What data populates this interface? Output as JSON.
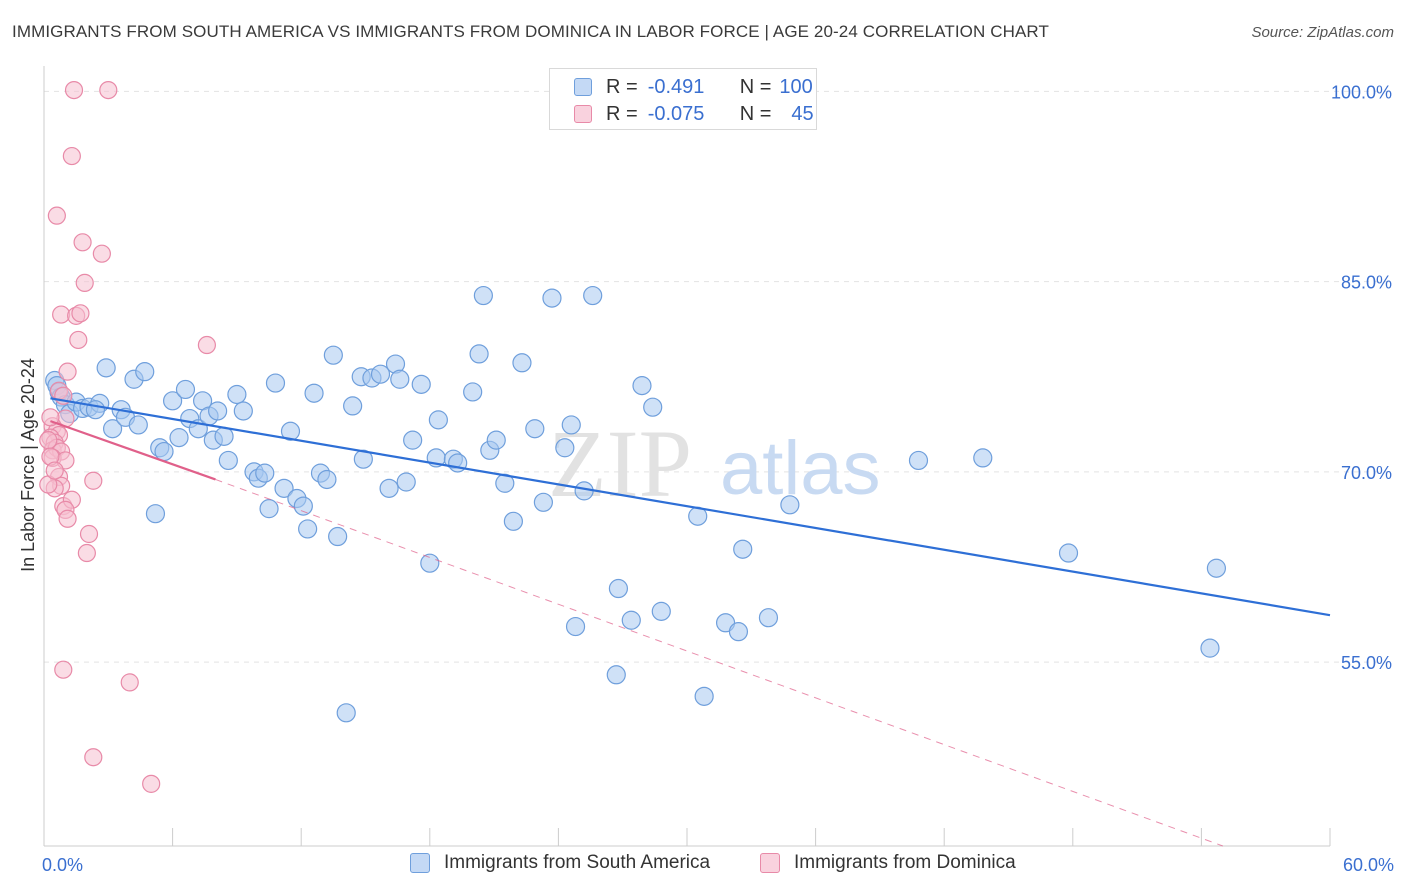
{
  "title": "IMMIGRANTS FROM SOUTH AMERICA VS IMMIGRANTS FROM DOMINICA IN LABOR FORCE | AGE 20-24 CORRELATION CHART",
  "source": "Source: ZipAtlas.com",
  "watermark": {
    "zip": "ZIP",
    "atlas": "atlas"
  },
  "colors": {
    "blue_fill": "#a8c8f0",
    "blue_stroke": "#6f9fdc",
    "blue_line": "#2e6fd6",
    "pink_fill": "#f6bfd0",
    "pink_stroke": "#e88aa8",
    "pink_line": "#e0608a",
    "axis_text": "#3a6fd0",
    "grid": "#e3e3e3"
  },
  "stats": {
    "r_label": "R =",
    "n_label": "N =",
    "rows": [
      {
        "series": "Immigrants from South America",
        "r": "-0.491",
        "n": "100"
      },
      {
        "series": "Immigrants from Dominica",
        "r": "-0.075",
        "n": "45"
      }
    ]
  },
  "legend": [
    "Immigrants from South America",
    "Immigrants from Dominica"
  ],
  "chart_data": {
    "type": "scatter",
    "title": "IMMIGRANTS FROM SOUTH AMERICA VS IMMIGRANTS FROM DOMINICA IN LABOR FORCE | AGE 20-24 CORRELATION CHART",
    "xlabel": "",
    "ylabel": "In Labor Force | Age 20-24",
    "xlim": [
      0,
      60
    ],
    "ylim": [
      40.5,
      102
    ],
    "x_tick_labels": [
      "0.0%",
      "60.0%"
    ],
    "y_ticks": [
      55,
      70,
      85,
      100
    ],
    "y_tick_labels": [
      "55.0%",
      "70.0%",
      "85.0%",
      "100.0%"
    ],
    "grid": true,
    "series": [
      {
        "name": "Immigrants from South America",
        "trend": {
          "x": [
            0.3,
            60
          ],
          "y": [
            75.8,
            58.7
          ],
          "style": "solid"
        },
        "points": [
          [
            0.5,
            77.2
          ],
          [
            0.6,
            76.8
          ],
          [
            0.7,
            76.3
          ],
          [
            0.8,
            75.9
          ],
          [
            1.0,
            75.3
          ],
          [
            1.2,
            74.6
          ],
          [
            1.5,
            75.5
          ],
          [
            1.8,
            75.0
          ],
          [
            2.1,
            75.1
          ],
          [
            2.6,
            75.4
          ],
          [
            2.9,
            78.2
          ],
          [
            3.2,
            73.4
          ],
          [
            3.6,
            74.9
          ],
          [
            3.8,
            74.3
          ],
          [
            4.2,
            77.3
          ],
          [
            4.4,
            73.7
          ],
          [
            4.7,
            77.9
          ],
          [
            5.2,
            66.7
          ],
          [
            5.4,
            71.9
          ],
          [
            5.6,
            71.6
          ],
          [
            6.0,
            75.6
          ],
          [
            6.3,
            72.7
          ],
          [
            6.6,
            76.5
          ],
          [
            6.8,
            74.2
          ],
          [
            7.2,
            73.4
          ],
          [
            7.4,
            75.6
          ],
          [
            7.7,
            74.4
          ],
          [
            7.9,
            72.5
          ],
          [
            8.1,
            74.8
          ],
          [
            8.4,
            72.8
          ],
          [
            8.6,
            70.9
          ],
          [
            9.0,
            76.1
          ],
          [
            9.3,
            74.8
          ],
          [
            9.8,
            70.0
          ],
          [
            10.0,
            69.5
          ],
          [
            10.3,
            69.9
          ],
          [
            10.5,
            67.1
          ],
          [
            10.8,
            77.0
          ],
          [
            11.2,
            68.7
          ],
          [
            11.5,
            73.2
          ],
          [
            11.8,
            67.9
          ],
          [
            12.1,
            67.3
          ],
          [
            12.3,
            65.5
          ],
          [
            12.6,
            76.2
          ],
          [
            12.9,
            69.9
          ],
          [
            13.2,
            69.4
          ],
          [
            13.5,
            79.2
          ],
          [
            13.7,
            64.9
          ],
          [
            14.4,
            75.2
          ],
          [
            14.8,
            77.5
          ],
          [
            14.9,
            71.0
          ],
          [
            15.3,
            77.4
          ],
          [
            15.7,
            77.7
          ],
          [
            14.1,
            51.0
          ],
          [
            16.1,
            68.7
          ],
          [
            16.4,
            78.5
          ],
          [
            16.6,
            77.3
          ],
          [
            16.9,
            69.2
          ],
          [
            17.2,
            72.5
          ],
          [
            17.6,
            76.9
          ],
          [
            18.0,
            62.8
          ],
          [
            18.3,
            71.1
          ],
          [
            18.4,
            74.1
          ],
          [
            19.1,
            71.0
          ],
          [
            19.3,
            70.7
          ],
          [
            20.0,
            76.3
          ],
          [
            20.3,
            79.3
          ],
          [
            20.5,
            83.9
          ],
          [
            20.8,
            71.7
          ],
          [
            21.1,
            72.5
          ],
          [
            21.5,
            69.1
          ],
          [
            21.9,
            66.1
          ],
          [
            22.3,
            78.6
          ],
          [
            22.9,
            73.4
          ],
          [
            23.3,
            67.6
          ],
          [
            23.7,
            83.7
          ],
          [
            24.3,
            71.9
          ],
          [
            24.6,
            73.7
          ],
          [
            24.8,
            57.8
          ],
          [
            25.2,
            68.5
          ],
          [
            25.6,
            83.9
          ],
          [
            26.7,
            54.0
          ],
          [
            26.8,
            60.8
          ],
          [
            27.4,
            58.3
          ],
          [
            27.9,
            76.8
          ],
          [
            28.4,
            75.1
          ],
          [
            28.8,
            59.0
          ],
          [
            30.5,
            66.5
          ],
          [
            30.8,
            52.3
          ],
          [
            31.8,
            58.1
          ],
          [
            32.4,
            57.4
          ],
          [
            32.6,
            63.9
          ],
          [
            33.8,
            58.5
          ],
          [
            34.8,
            67.4
          ],
          [
            40.8,
            70.9
          ],
          [
            43.8,
            71.1
          ],
          [
            47.8,
            63.6
          ],
          [
            54.4,
            56.1
          ],
          [
            54.7,
            62.4
          ],
          [
            2.4,
            74.9
          ]
        ]
      },
      {
        "name": "Immigrants from Dominica",
        "trend": {
          "x": [
            0.3,
            8.0
          ],
          "y": [
            74.0,
            69.4
          ],
          "style": "solid",
          "extended_to": [
            55,
            40.5
          ],
          "extended_style": "dashed"
        },
        "points": [
          [
            1.4,
            100.1
          ],
          [
            3.0,
            100.1
          ],
          [
            1.3,
            94.9
          ],
          [
            0.6,
            90.2
          ],
          [
            1.8,
            88.1
          ],
          [
            2.7,
            87.2
          ],
          [
            1.9,
            84.9
          ],
          [
            0.8,
            82.4
          ],
          [
            1.5,
            82.3
          ],
          [
            1.7,
            82.5
          ],
          [
            1.6,
            80.4
          ],
          [
            7.6,
            80.0
          ],
          [
            1.1,
            77.9
          ],
          [
            0.7,
            76.4
          ],
          [
            0.9,
            76.0
          ],
          [
            1.0,
            74.2
          ],
          [
            0.4,
            73.6
          ],
          [
            0.6,
            73.2
          ],
          [
            0.7,
            72.9
          ],
          [
            0.3,
            72.7
          ],
          [
            0.5,
            72.3
          ],
          [
            0.4,
            71.7
          ],
          [
            0.6,
            71.9
          ],
          [
            0.8,
            71.6
          ],
          [
            0.4,
            71.1
          ],
          [
            1.0,
            70.9
          ],
          [
            0.7,
            69.6
          ],
          [
            0.8,
            68.9
          ],
          [
            0.5,
            68.7
          ],
          [
            2.3,
            69.3
          ],
          [
            0.9,
            67.3
          ],
          [
            1.3,
            67.8
          ],
          [
            1.0,
            67.0
          ],
          [
            1.1,
            66.3
          ],
          [
            2.1,
            65.1
          ],
          [
            2.0,
            63.6
          ],
          [
            0.9,
            54.4
          ],
          [
            4.0,
            53.4
          ],
          [
            2.3,
            47.5
          ],
          [
            5.0,
            45.4
          ],
          [
            0.3,
            74.3
          ],
          [
            0.2,
            72.5
          ],
          [
            0.3,
            71.2
          ],
          [
            0.2,
            69.0
          ],
          [
            0.5,
            70.1
          ]
        ]
      }
    ]
  }
}
